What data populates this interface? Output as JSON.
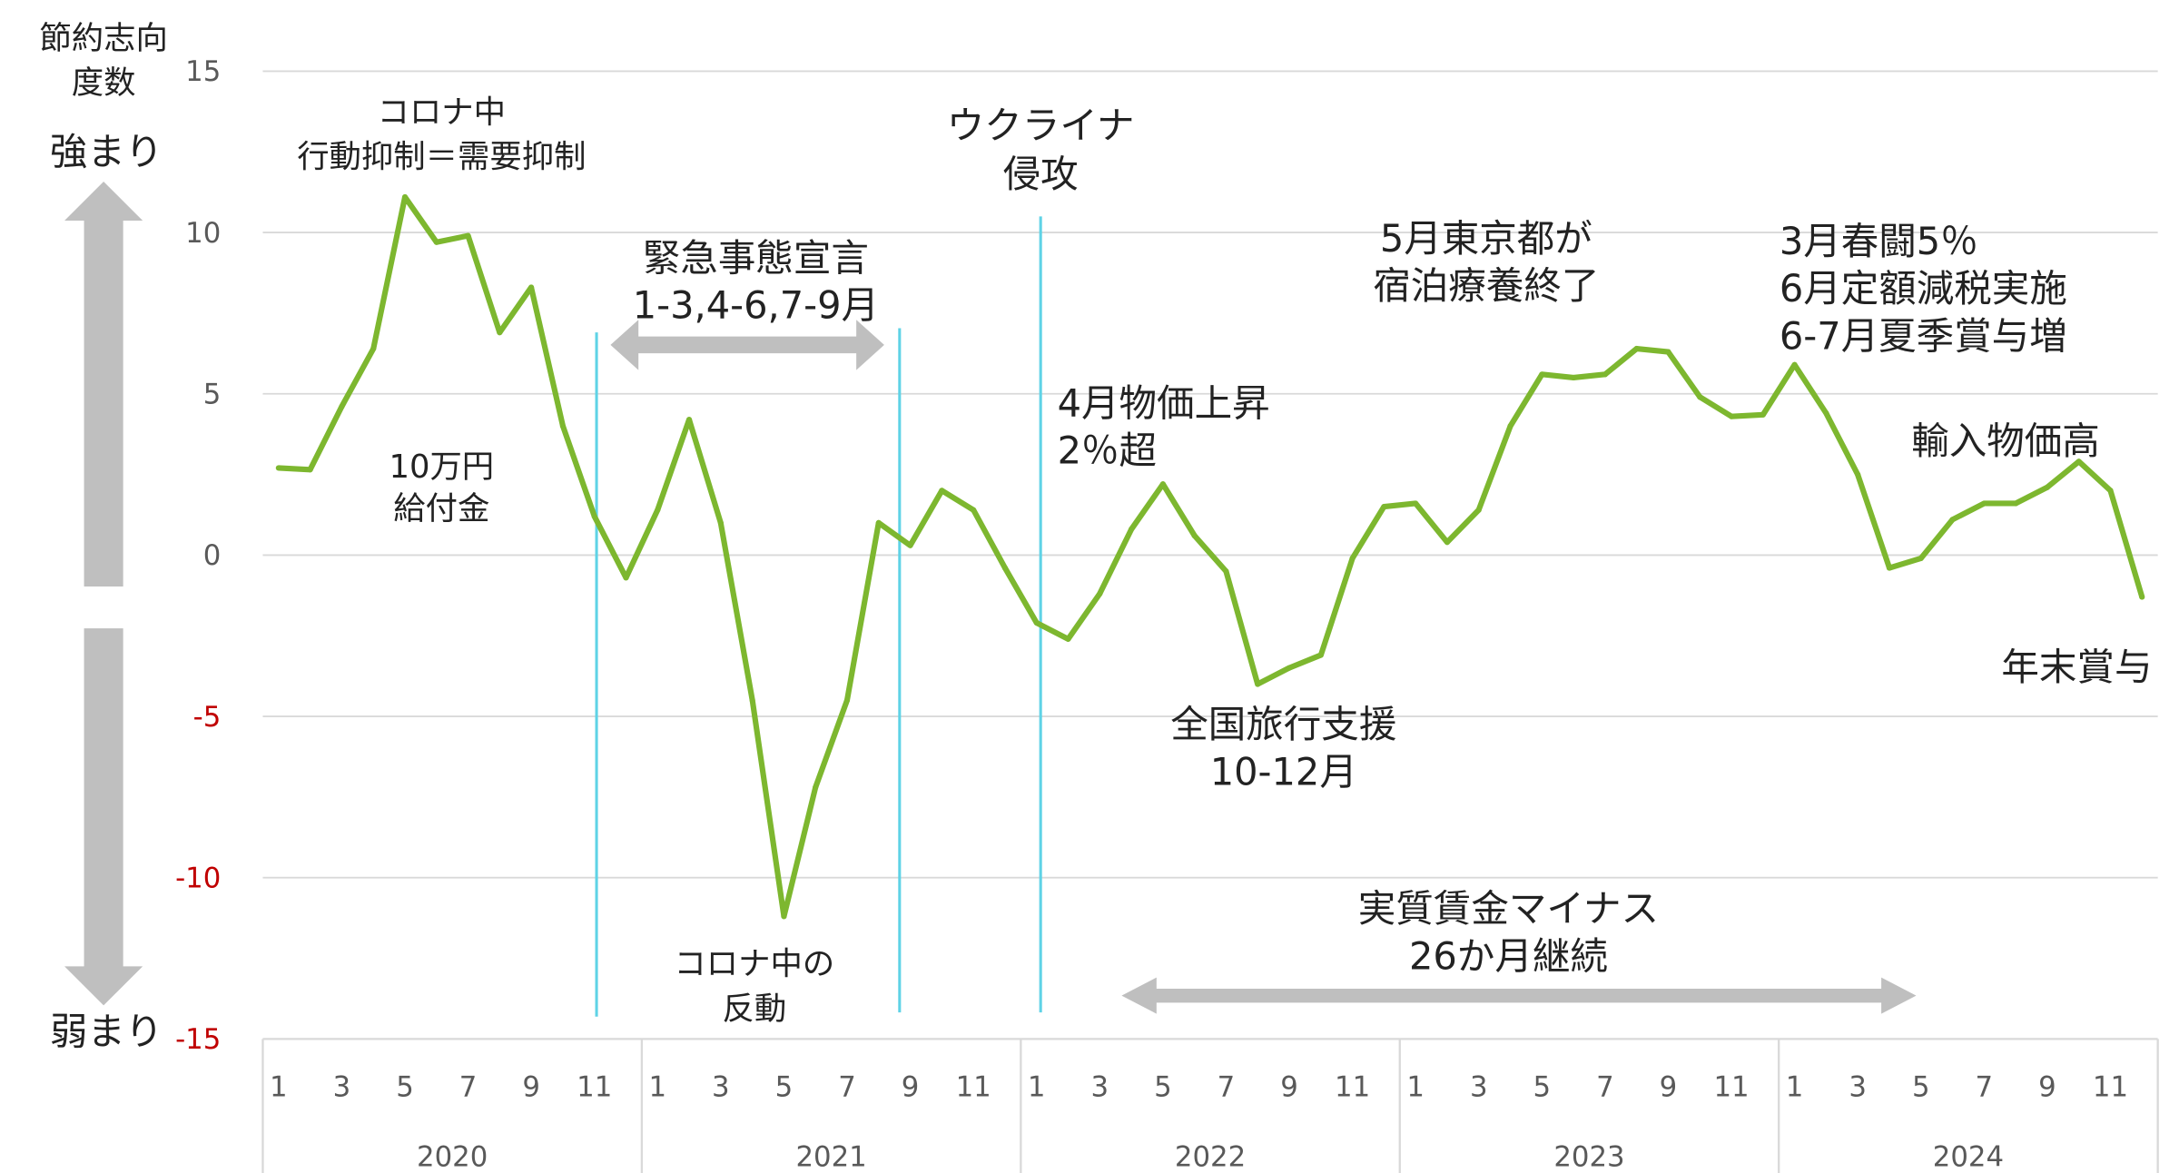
{
  "chart_data": {
    "type": "line",
    "title": "",
    "ylabel": "節約志向度数",
    "ylim": [
      -15,
      15
    ],
    "yticks": [
      15,
      10,
      5,
      0,
      -5,
      -10,
      -15
    ],
    "ytick_labels": [
      "15",
      "10",
      "5",
      "0",
      "-5",
      "-10",
      "-15"
    ],
    "grid": true,
    "years": [
      "2020",
      "2021",
      "2022",
      "2023",
      "2024"
    ],
    "month_labels": [
      "1",
      "3",
      "5",
      "7",
      "9",
      "11"
    ],
    "series": [
      {
        "name": "節約志向度数",
        "color": "#7db72f",
        "values": [
          2.7,
          2.65,
          4.6,
          6.4,
          11.1,
          9.7,
          9.9,
          6.9,
          8.3,
          4.0,
          1.2,
          -0.7,
          1.4,
          4.2,
          1.0,
          -4.5,
          -11.2,
          -7.2,
          -4.5,
          1.0,
          0.3,
          2.0,
          1.4,
          -0.4,
          -2.1,
          -2.6,
          -1.2,
          0.8,
          2.2,
          0.6,
          -0.5,
          -4.0,
          -3.5,
          -3.1,
          -0.1,
          1.5,
          1.6,
          0.4,
          1.4,
          4.0,
          5.6,
          5.5,
          5.6,
          6.4,
          6.3,
          4.9,
          4.3,
          4.35,
          5.9,
          4.4,
          2.5,
          -0.4,
          -0.1,
          1.1,
          1.6,
          1.6,
          2.1,
          2.9,
          2.0,
          -1.3
        ]
      }
    ],
    "side_labels": {
      "up": "強まり",
      "down": "弱まり",
      "axis_title_1": "節約志向",
      "axis_title_2": "度数"
    },
    "annotations": {
      "corona": [
        "コロナ中",
        "行動抑制＝需要抑制"
      ],
      "kyufu": [
        "10万円",
        "給付金"
      ],
      "emergency": [
        "緊急事態宣言",
        "1-3,4-6,7-9月"
      ],
      "rebound": [
        "コロナ中の",
        "反動"
      ],
      "ukraine": [
        "ウクライナ",
        "侵攻"
      ],
      "price": [
        "4月物価上昇",
        "2％超"
      ],
      "travel": [
        "全国旅行支援",
        "10-12月"
      ],
      "tokyo": [
        "5月東京都が",
        "宿泊療養終了"
      ],
      "wage": [
        "実質賃金マイナス",
        "26か月継続"
      ],
      "shunto": [
        "3月春闘5％",
        "6月定額減税実施",
        "6-7月夏季賞与増"
      ],
      "import": [
        "輸入物価高"
      ],
      "yearend": [
        "年末賞与"
      ]
    },
    "accent_colors": {
      "event_line": "#5fd3e6",
      "arrow": "#bfbfbf",
      "negative_tick": "#c00000"
    }
  }
}
